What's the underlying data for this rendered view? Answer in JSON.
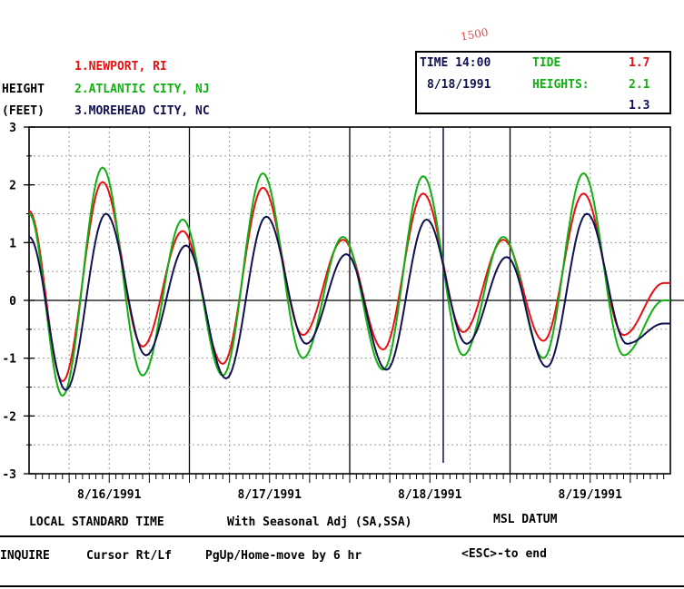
{
  "legend": {
    "height_label": "HEIGHT",
    "feet_label": "(FEET)",
    "stations": [
      {
        "label": "1.NEWPORT, RI",
        "color": "#e81010"
      },
      {
        "label": "2.ATLANTIC CITY, NJ",
        "color": "#10b010"
      },
      {
        "label": "3.MOREHEAD CITY, NC",
        "color": "#101050"
      }
    ]
  },
  "readout": {
    "time": "TIME 14:00",
    "date": "8/18/1991",
    "tide_label": "TIDE",
    "heights_label": "HEIGHTS:",
    "values": [
      "1.7",
      "2.1",
      "1.3"
    ]
  },
  "footer": {
    "time_ref": "LOCAL STANDARD TIME",
    "seasonal": "With Seasonal Adj (SA,SSA)",
    "datum": "MSL DATUM"
  },
  "status_bar": {
    "mode": "INQUIRE",
    "cursor": "Cursor Rt/Lf",
    "paging": "PgUp/Home-move by 6 hr",
    "exit": "<ESC>-to end"
  },
  "annotations": {
    "time_note": "1500"
  },
  "chart_data": {
    "type": "line",
    "title": "",
    "xlabel": "",
    "ylabel": "HEIGHT (FEET)",
    "ylim": [
      -3,
      3
    ],
    "yticks": [
      -3,
      -2,
      -1,
      0,
      1,
      2,
      3
    ],
    "xlim": [
      "8/16/1991 00:00",
      "8/20/1991 00:00"
    ],
    "date_labels": [
      "8/16/1991",
      "8/17/1991",
      "8/18/1991",
      "8/19/1991"
    ],
    "grid": true,
    "cursor_time": "8/18/1991 14:00",
    "zero_line": true,
    "series": [
      {
        "name": "1.NEWPORT, RI",
        "color": "#e81010",
        "x_hours": [
          0,
          5,
          11,
          17,
          23,
          29,
          35,
          41,
          47,
          53,
          59,
          65,
          71,
          77,
          83,
          89,
          95,
          96
        ],
        "values": [
          1.55,
          -1.4,
          2.05,
          -0.8,
          1.2,
          -1.1,
          1.95,
          -0.6,
          1.05,
          -0.85,
          1.85,
          -0.55,
          1.05,
          -0.7,
          1.85,
          -0.6,
          0.3,
          0.3
        ]
      },
      {
        "name": "2.ATLANTIC CITY, NJ",
        "color": "#10b010",
        "x_hours": [
          0,
          5,
          11,
          17,
          23,
          29,
          35,
          41,
          47,
          53,
          59,
          65,
          71,
          77,
          83,
          89,
          95,
          96
        ],
        "values": [
          1.5,
          -1.65,
          2.3,
          -1.3,
          1.4,
          -1.3,
          2.2,
          -1.0,
          1.1,
          -1.2,
          2.15,
          -0.95,
          1.1,
          -1.0,
          2.2,
          -0.95,
          0.0,
          0.0
        ]
      },
      {
        "name": "3.MOREHEAD CITY, NC",
        "color": "#101050",
        "x_hours": [
          0,
          5.5,
          11.5,
          17.5,
          23.5,
          29.5,
          35.5,
          41.5,
          47.5,
          53.5,
          59.5,
          65.5,
          71.5,
          77.5,
          83.5,
          89.5,
          95,
          96
        ],
        "values": [
          1.1,
          -1.55,
          1.5,
          -0.95,
          0.95,
          -1.35,
          1.45,
          -0.75,
          0.8,
          -1.2,
          1.4,
          -0.75,
          0.75,
          -1.15,
          1.5,
          -0.75,
          -0.4,
          -0.4
        ]
      }
    ]
  }
}
